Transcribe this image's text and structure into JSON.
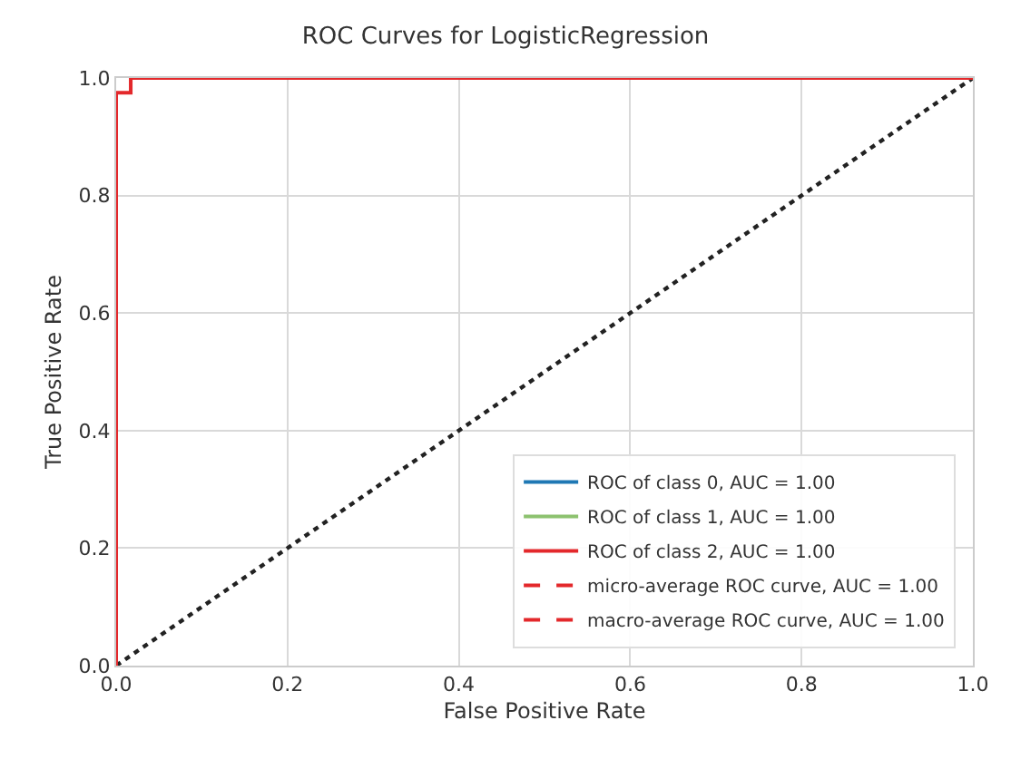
{
  "chart_data": {
    "type": "line",
    "title": "ROC Curves for LogisticRegression",
    "xlabel": "False Positive Rate",
    "ylabel": "True Positive Rate",
    "xlim": [
      0,
      1
    ],
    "ylim": [
      0,
      1
    ],
    "xticks": [
      {
        "value": 0,
        "label": "0.0"
      },
      0.2,
      0.4,
      0.6,
      0.8,
      {
        "value": 1,
        "label": "1.0"
      }
    ],
    "yticks": [
      {
        "value": 0,
        "label": "0.0"
      },
      0.2,
      0.4,
      0.6,
      0.8,
      {
        "value": 1,
        "label": "1.0"
      }
    ],
    "series": [
      {
        "color": "#222222",
        "x": [
          0,
          1
        ],
        "values": [
          0,
          1
        ],
        "line_style": "dotted"
      },
      {
        "name": "ROC of class 0, AUC = 1.00",
        "color": "#1f78b4",
        "line_style": "solid"
      },
      {
        "name": "ROC of class 1, AUC = 1.00",
        "color": "#8dc26f",
        "line_style": "solid"
      },
      {
        "name": "ROC of class 2, AUC = 1.00",
        "color": "#e3282b",
        "x": [
          0,
          0,
          0.017,
          0.017,
          1
        ],
        "values": [
          0,
          0.975,
          0.975,
          1,
          1
        ],
        "line_style": "solid"
      },
      {
        "name": "micro-average ROC curve, AUC = 1.00",
        "color": "#e3282b",
        "line_style": "dashed"
      },
      {
        "name": "macro-average ROC curve, AUC = 1.00",
        "color": "#e3282b",
        "line_style": "dashed"
      }
    ],
    "grid": true,
    "legend": "bottom right",
    "marker": "none"
  }
}
